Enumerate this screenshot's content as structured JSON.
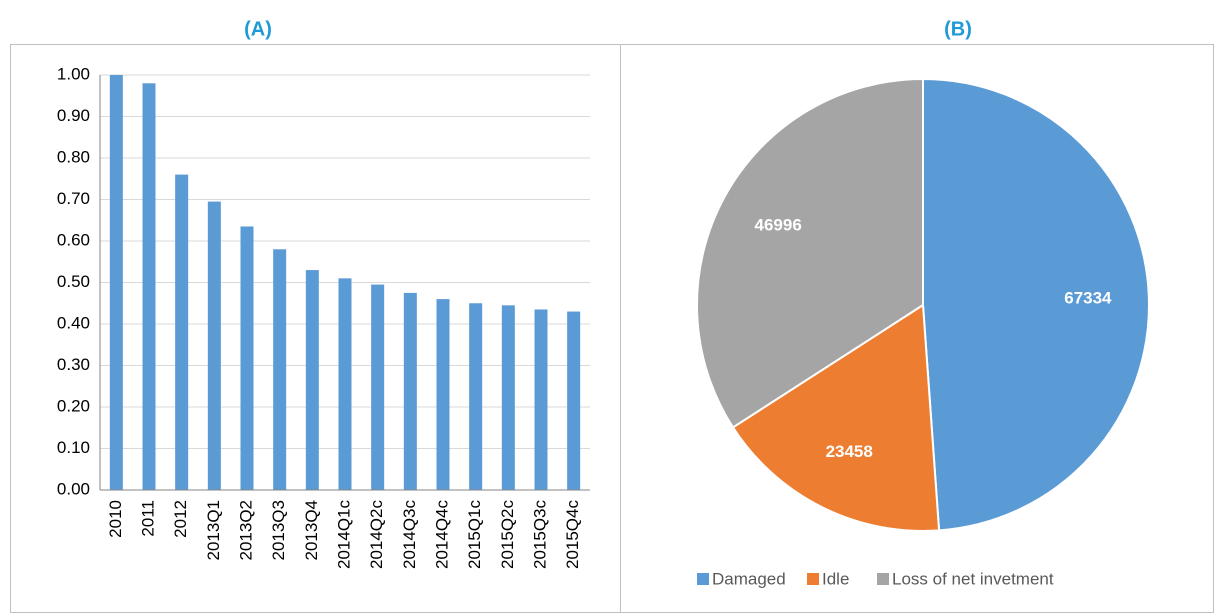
{
  "chart_data": [
    {
      "type": "bar",
      "title": "(A)",
      "categories": [
        "2010",
        "2011",
        "2012",
        "2013Q1",
        "2013Q2",
        "2013Q3",
        "2013Q4",
        "2014Q1c",
        "2014Q2c",
        "2014Q3c",
        "2014Q4c",
        "2015Q1c",
        "2015Q2c",
        "2015Q3c",
        "2015Q4c"
      ],
      "values": [
        1.0,
        0.98,
        0.76,
        0.695,
        0.635,
        0.58,
        0.53,
        0.51,
        0.495,
        0.475,
        0.46,
        0.45,
        0.445,
        0.435,
        0.43
      ],
      "color": "#5b9bd5",
      "ylim": [
        0,
        1
      ],
      "yticks": [
        {
          "value": 0,
          "label": "0.00"
        },
        {
          "value": 0.1,
          "label": "0.10"
        },
        {
          "value": 0.2,
          "label": "0.20"
        },
        {
          "value": 0.3,
          "label": "0.30"
        },
        {
          "value": 0.4,
          "label": "0.40"
        },
        {
          "value": 0.5,
          "label": "0.50"
        },
        {
          "value": 0.6,
          "label": "0.60"
        },
        {
          "value": 0.7,
          "label": "0.70"
        },
        {
          "value": 0.8,
          "label": "0.80"
        },
        {
          "value": 0.9,
          "label": "0.90"
        },
        {
          "value": 1,
          "label": "1.00"
        }
      ],
      "grid": true
    },
    {
      "type": "pie",
      "title": "(B)",
      "categories": [
        "Damaged",
        "Idle",
        "Loss of net invetment"
      ],
      "values": [
        67334,
        23458,
        46996
      ],
      "colors": [
        "#5b9bd5",
        "#ed7d31",
        "#a5a5a5"
      ],
      "legend": "bottom"
    }
  ]
}
